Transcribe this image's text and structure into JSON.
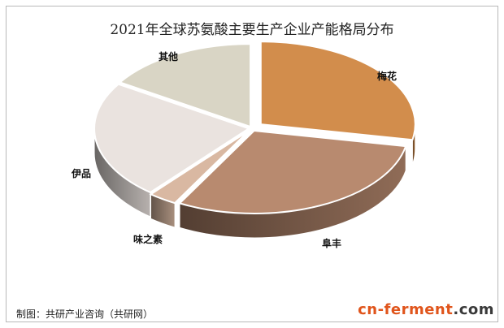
{
  "chart_data": {
    "type": "pie",
    "title": "2021年全球苏氨酸主要生产企业产能格局分布",
    "categories": [
      "梅花",
      "阜丰",
      "味之素",
      "伊品",
      "其他"
    ],
    "values": [
      28,
      30,
      3,
      23,
      16
    ],
    "colors": [
      "#d28d4c",
      "#b88a6f",
      "#d9b8a2",
      "#eae3df",
      "#d9d5c5"
    ],
    "legend": "labels-on-slices"
  },
  "source_note": "制图：共研产业咨询（共研网）",
  "logo": {
    "brand": "cn-ferment",
    "domain": ".com"
  }
}
